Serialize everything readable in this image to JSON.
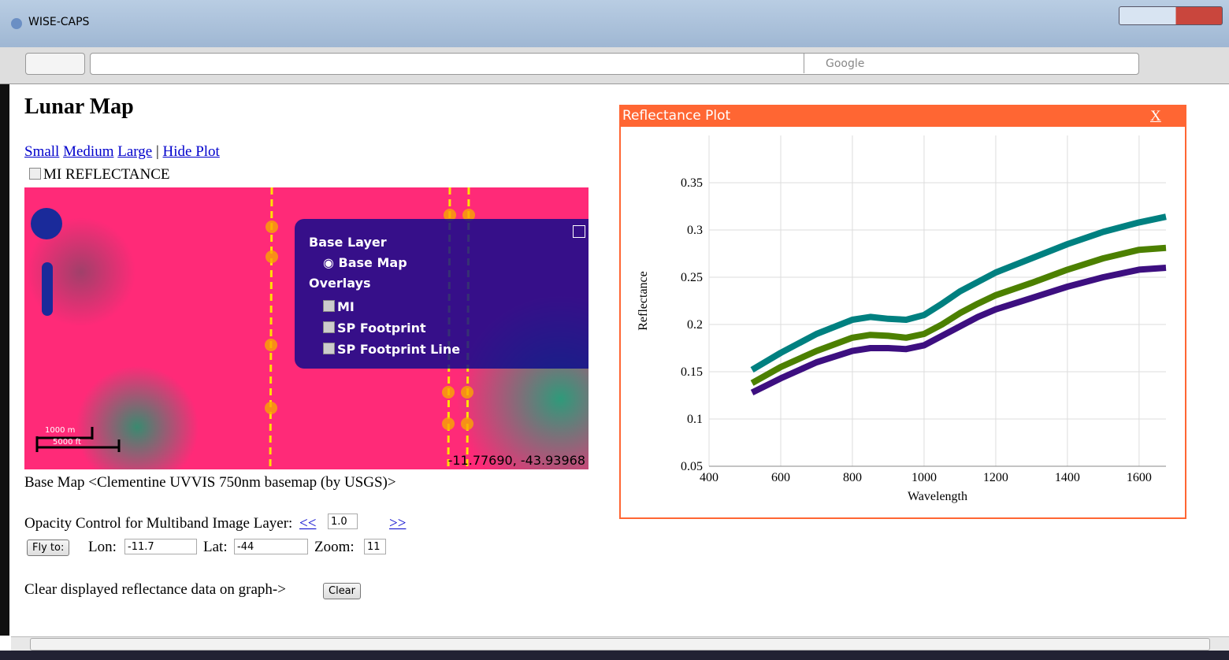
{
  "window": {
    "title": "WISE-CAPS",
    "search_placeholder": "Google"
  },
  "page": {
    "title": "Lunar Map",
    "links": [
      "Small",
      "Medium",
      "Large",
      "Hide Plot"
    ],
    "separator": "|",
    "checkbox_label": "MI REFLECTANCE"
  },
  "map": {
    "layer_switcher": {
      "base_heading": "Base Layer",
      "base": "Base Map",
      "overlays_heading": "Overlays",
      "overlays": [
        "MI",
        "SP Footprint",
        "SP Footprint Line"
      ]
    },
    "scale": [
      "1000 m",
      "5000 ft"
    ],
    "coordinates": "-11.77690, -43.93968"
  },
  "caption": "Base Map <Clementine UVVIS 750nm basemap (by USGS)>",
  "opacity": {
    "label": "Opacity Control for Multiband Image Layer:",
    "decrease": "<<",
    "value": "1.0",
    "increase": ">>"
  },
  "fly": {
    "button": "Fly to:",
    "lon_label": "Lon:",
    "lon": "-11.7",
    "lat_label": "Lat:",
    "lat": "-44",
    "zoom_label": "Zoom:",
    "zoom": "11"
  },
  "clear": {
    "label": "Clear displayed reflectance data on graph->",
    "button": "Clear"
  },
  "plot": {
    "title": "Reflectance Plot",
    "close": "X",
    "chart_data": {
      "type": "line",
      "x_label": "Wavelength",
      "y_label": "Reflectance",
      "x": [
        520,
        600,
        700,
        800,
        850,
        900,
        950,
        1000,
        1050,
        1100,
        1150,
        1200,
        1300,
        1400,
        1500,
        1600,
        1675
      ],
      "series": [
        {
          "color": "#008080",
          "values": [
            0.152,
            0.17,
            0.19,
            0.205,
            0.208,
            0.206,
            0.205,
            0.21,
            0.222,
            0.235,
            0.245,
            0.255,
            0.27,
            0.285,
            0.298,
            0.308,
            0.314
          ]
        },
        {
          "color": "#4c8000",
          "values": [
            0.138,
            0.155,
            0.172,
            0.186,
            0.189,
            0.188,
            0.186,
            0.19,
            0.2,
            0.212,
            0.222,
            0.231,
            0.244,
            0.258,
            0.27,
            0.279,
            0.281
          ]
        },
        {
          "color": "#3d0f80",
          "values": [
            0.128,
            0.143,
            0.16,
            0.172,
            0.175,
            0.175,
            0.174,
            0.178,
            0.188,
            0.198,
            0.208,
            0.216,
            0.228,
            0.24,
            0.25,
            0.258,
            0.26
          ]
        }
      ],
      "xlim": [
        400,
        1675
      ],
      "ylim": [
        0.05,
        0.4
      ],
      "xticks": [
        400,
        600,
        800,
        1000,
        1200,
        1400,
        1600
      ],
      "yticks": [
        0.05,
        0.1,
        0.15,
        0.2,
        0.25,
        0.3,
        0.35
      ],
      "grid": true
    }
  }
}
